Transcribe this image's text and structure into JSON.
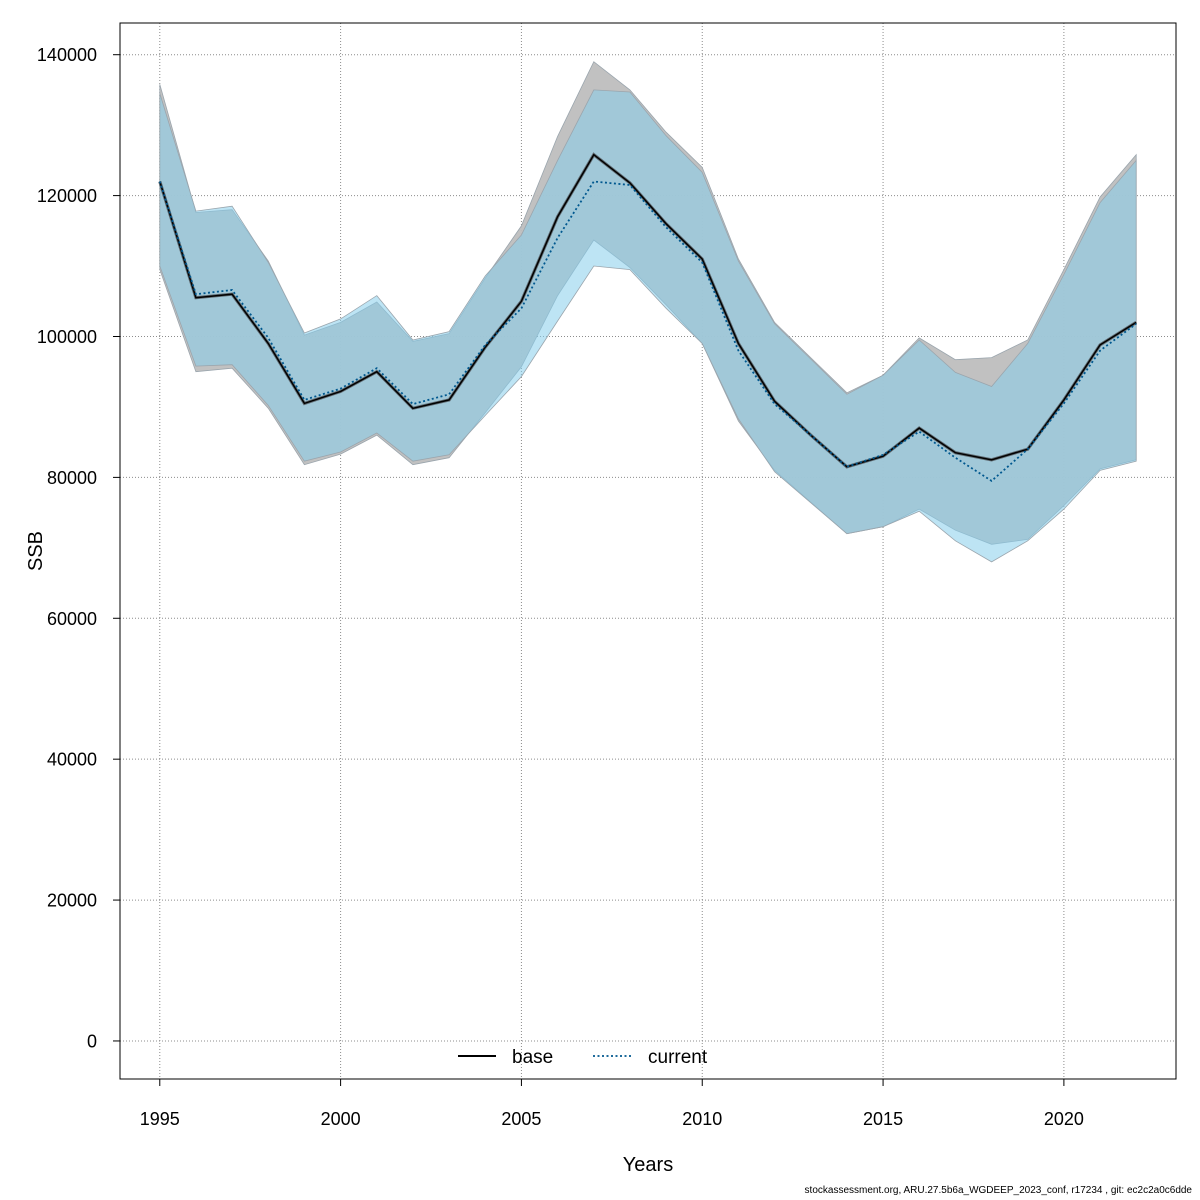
{
  "chart_data": {
    "type": "area",
    "xlabel": "Years",
    "ylabel": "SSB",
    "xlim": [
      1993.9,
      2023.1
    ],
    "ylim": [
      -5400,
      144500
    ],
    "xticks": [
      1995,
      2000,
      2005,
      2010,
      2015,
      2020
    ],
    "xtick_labels": [
      "1995",
      "2000",
      "2005",
      "2010",
      "2015",
      "2020"
    ],
    "yticks": [
      0,
      20000,
      40000,
      60000,
      80000,
      100000,
      120000,
      140000
    ],
    "ytick_labels": [
      "0",
      "20000",
      "40000",
      "60000",
      "80000",
      "100000",
      "120000",
      "140000"
    ],
    "grid": true,
    "legend_position": "bottom-center",
    "legend": [
      {
        "label": "base",
        "style": "solid",
        "color": "#000000"
      },
      {
        "label": "current",
        "style": "dotted",
        "color": "#00588f"
      }
    ],
    "x": [
      1995,
      1996,
      1997,
      1998,
      1999,
      2000,
      2001,
      2002,
      2003,
      2004,
      2005,
      2006,
      2007,
      2008,
      2009,
      2010,
      2011,
      2012,
      2013,
      2014,
      2015,
      2016,
      2017,
      2018,
      2019,
      2020,
      2021,
      2022
    ],
    "series": [
      {
        "name": "base",
        "color": "#000000",
        "band_color": "#bebebe",
        "values": [
          122000,
          105500,
          106000,
          99000,
          90500,
          92200,
          95000,
          89800,
          91000,
          98500,
          105000,
          117000,
          125800,
          121800,
          116000,
          111000,
          99000,
          90800,
          86000,
          81500,
          83000,
          87000,
          83500,
          82500,
          84000,
          91000,
          98800,
          102000
        ],
        "low": [
          109500,
          95000,
          95500,
          89800,
          81800,
          83300,
          86000,
          81800,
          82800,
          89200,
          95700,
          105800,
          113700,
          109800,
          104500,
          99000,
          88000,
          81000,
          76500,
          72000,
          73000,
          75500,
          72500,
          70500,
          71200,
          76000,
          81200,
          82500
        ],
        "high": [
          135800,
          117600,
          118000,
          110700,
          100200,
          102000,
          104900,
          99300,
          100400,
          108300,
          115700,
          128400,
          139000,
          135000,
          129000,
          124000,
          111000,
          102000,
          97000,
          92000,
          94500,
          99800,
          96700,
          97000,
          99500,
          109500,
          119800,
          125800
        ]
      },
      {
        "name": "current",
        "color": "#00588f",
        "band_color": "#87ceeb",
        "values": [
          122000,
          106000,
          106600,
          99800,
          91000,
          92600,
          95500,
          90400,
          91800,
          98800,
          104000,
          114000,
          122000,
          121500,
          115500,
          110500,
          98000,
          90400,
          86000,
          81500,
          83200,
          86500,
          82800,
          79500,
          84000,
          90500,
          98000,
          101800
        ],
        "low": [
          110000,
          95800,
          96000,
          90200,
          82300,
          83600,
          86300,
          82300,
          83200,
          88800,
          94300,
          102200,
          110000,
          109500,
          104000,
          99000,
          88300,
          80800,
          76400,
          72000,
          73000,
          75200,
          71000,
          68000,
          71000,
          75500,
          81000,
          82300
        ],
        "high": [
          134500,
          117800,
          118500,
          110500,
          100500,
          102500,
          105800,
          99500,
          100700,
          108600,
          114400,
          125000,
          135000,
          134700,
          128500,
          123300,
          110700,
          101800,
          96800,
          91800,
          94500,
          99500,
          94900,
          92900,
          99000,
          108800,
          119000,
          125000
        ]
      }
    ]
  },
  "footer": {
    "text": "stockassessment.org, ARU.27.5b6a_WGDEEP_2023_conf, r17234 , git: ec2c2a0c6dde"
  }
}
